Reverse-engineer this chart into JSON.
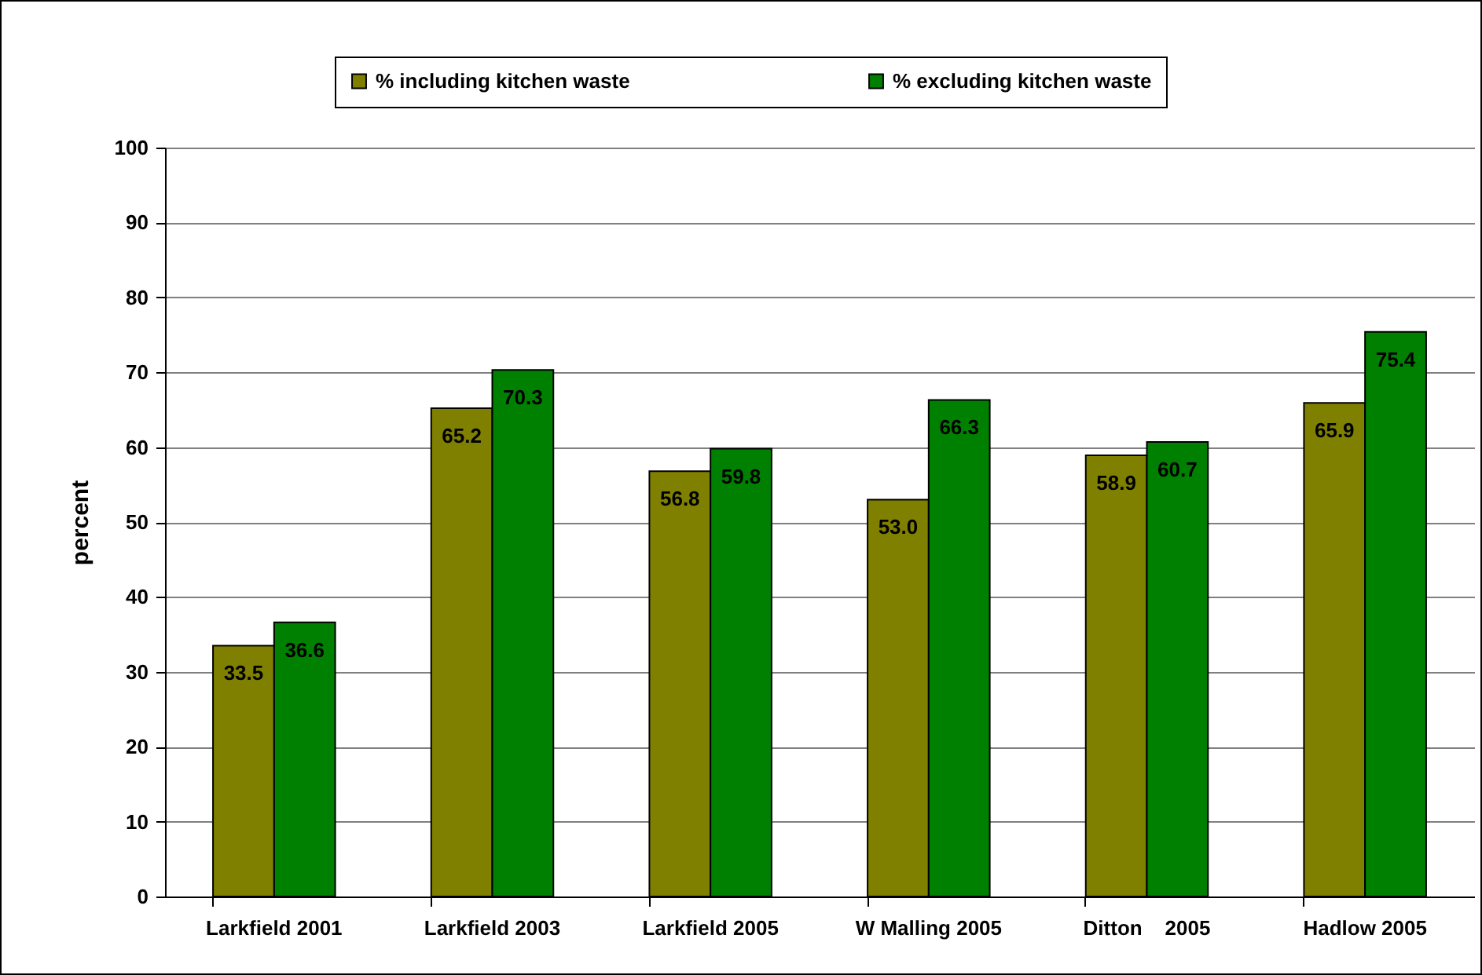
{
  "chart_data": {
    "type": "bar",
    "categories": [
      "Larkfield 2001",
      "Larkfield 2003",
      "Larkfield 2005",
      "W Malling 2005",
      "Ditton    2005",
      "Hadlow 2005"
    ],
    "series": [
      {
        "name": "% including kitchen waste",
        "color": "#808000",
        "values": [
          33.5,
          65.2,
          56.8,
          53.0,
          58.9,
          65.9
        ],
        "value_labels": [
          "33.5",
          "65.2",
          "56.8",
          "53.0",
          "58.9",
          "65.9"
        ]
      },
      {
        "name": "% excluding kitchen waste",
        "color": "#008000",
        "values": [
          36.6,
          70.3,
          59.8,
          66.3,
          60.7,
          75.4
        ],
        "value_labels": [
          "36.6",
          "70.3",
          "59.8",
          "66.3",
          "60.7",
          "75.4"
        ]
      }
    ],
    "ylabel": "percent",
    "ylim": [
      0,
      100
    ],
    "yticks": [
      0,
      10,
      20,
      30,
      40,
      50,
      60,
      70,
      80,
      90,
      100
    ],
    "grid": "y",
    "legend": "top"
  }
}
